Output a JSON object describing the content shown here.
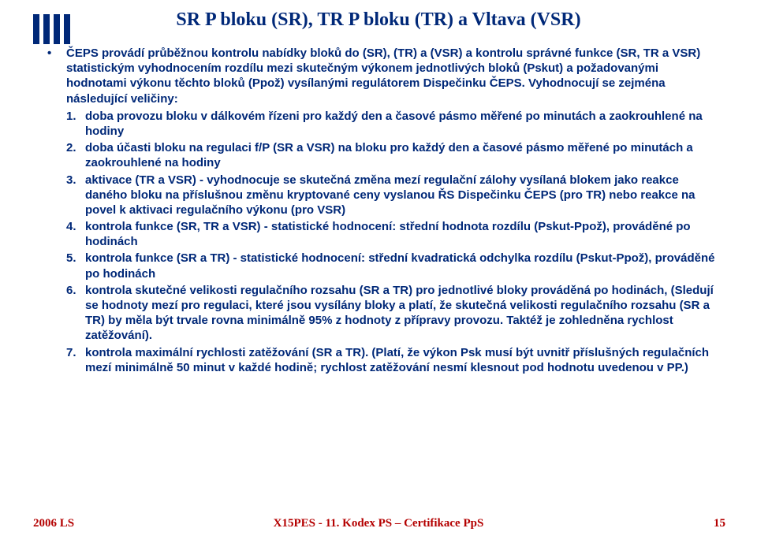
{
  "title": "SR P bloku (SR), TR P bloku (TR) a Vltava (VSR)",
  "bullet": "ČEPS provádí průběžnou kontrolu nabídky bloků do (SR), (TR) a (VSR) a kontrolu správné funkce (SR, TR a VSR) statistickým vyhodnocením rozdílu mezi skutečným výkonem jednotlivých bloků (Pskut) a požadovanými hodnotami výkonu těchto bloků (Ppož) vysílanými regulátorem Dispečinku ČEPS. Vyhodnocují se zejména následující veličiny:",
  "items": [
    "doba provozu bloku v dálkovém řízeni pro každý den a časové pásmo měřené po minutách a zaokrouhlené na hodiny",
    "doba účasti bloku na regulaci f/P (SR a VSR) na bloku pro každý den a časové pásmo měřené po minutách a zaokrouhlené na hodiny",
    "aktivace (TR a VSR) - vyhodnocuje se skutečná změna mezí regulační zálohy vysílaná blokem jako reakce daného bloku na příslušnou změnu kryptované ceny vyslanou ŘS Dispečinku ČEPS (pro TR) nebo reakce na povel k aktivaci regulačního výkonu (pro VSR)",
    "kontrola funkce (SR, TR a VSR) - statistické hodnocení: střední hodnota rozdílu (Pskut-Ppož), prováděné po hodinách",
    "kontrola funkce (SR a TR) - statistické hodnocení: střední kvadratická odchylka rozdílu (Pskut-Ppož), prováděné po hodinách",
    "kontrola skutečné velikosti regulačního rozsahu (SR a TR) pro jednotlivé bloky prováděná po hodinách, (Sledují se hodnoty mezí pro regulaci, které jsou vysílány bloky a platí, že skutečná velikosti regulačního rozsahu (SR a TR) by měla být trvale rovna minimálně 95% z hodnoty z přípravy provozu. Taktéž je zohledněna rychlost zatěžování).",
    "kontrola maximální rychlosti zatěžování (SR a TR). (Platí, že výkon Psk musí být uvnitř příslušných regulačních mezí minimálně 50 minut v každé hodině; rychlost zatěžování nesmí klesnout pod hodnotu uvedenou v PP.)"
  ],
  "footer": {
    "left": "2006 LS",
    "center": "X15PES - 11. Kodex PS – Certifikace PpS",
    "page": "15"
  },
  "colors": {
    "brand_blue": "#002878",
    "brand_red": "#b40000",
    "bg": "#ffffff"
  },
  "typography": {
    "title_fontsize": 24,
    "body_fontsize": 15,
    "footer_fontsize": 15
  }
}
